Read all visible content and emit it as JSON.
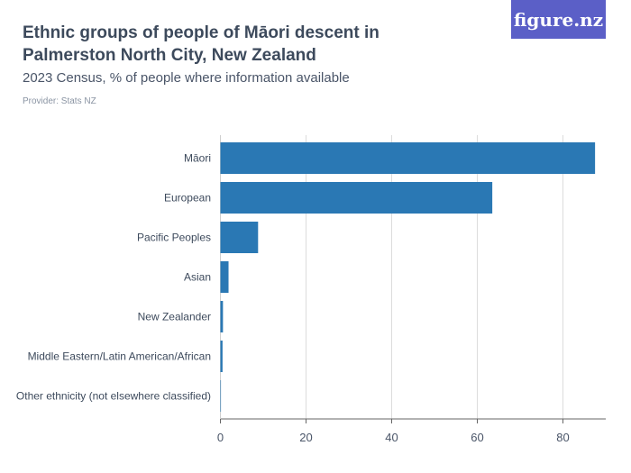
{
  "header": {
    "title": "Ethnic groups of people of Māori descent in Palmerston North City, New Zealand",
    "subtitle": "2023 Census, % of people where information available",
    "provider": "Provider: Stats NZ",
    "logo": "figure.nz"
  },
  "chart_data": {
    "type": "bar",
    "orientation": "horizontal",
    "categories": [
      "Māori",
      "European",
      "Pacific Peoples",
      "Asian",
      "New Zealander",
      "Middle Eastern/Latin American/African",
      "Other ethnicity (not elsewhere classified)"
    ],
    "values": [
      87.5,
      63.5,
      8.8,
      1.9,
      0.6,
      0.5,
      0.1
    ],
    "xlim": [
      0,
      90
    ],
    "xticks": [
      0,
      20,
      40,
      60,
      80
    ],
    "grid": true,
    "color": "#2a78b4"
  }
}
